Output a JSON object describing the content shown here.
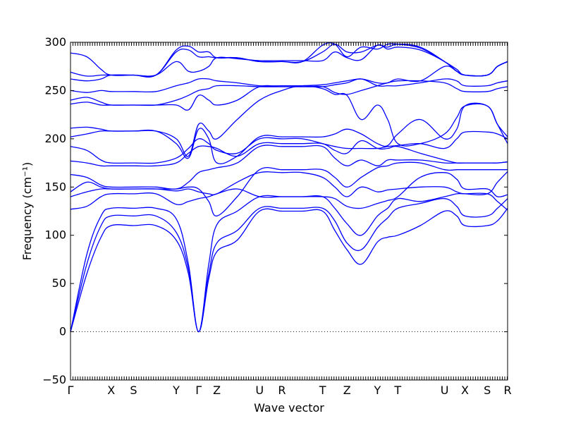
{
  "chart_data": {
    "type": "line",
    "title": "",
    "xlabel": "Wave vector",
    "ylabel": "Frequency (cm⁻¹)",
    "ylim": [
      -50,
      300
    ],
    "xlim": [
      0,
      21.5
    ],
    "yticks": [
      -50,
      0,
      50,
      100,
      150,
      200,
      250,
      300
    ],
    "high_symmetry_points": [
      {
        "label": "Γ",
        "x": 0
      },
      {
        "label": "X",
        "x": 2.0
      },
      {
        "label": "S",
        "x": 3.1
      },
      {
        "label": "Y",
        "x": 5.2
      },
      {
        "label": "Γ",
        "x": 6.3
      },
      {
        "label": "Z",
        "x": 7.2
      },
      {
        "label": "U",
        "x": 9.3
      },
      {
        "label": "R",
        "x": 10.4
      },
      {
        "label": "T",
        "x": 12.4
      },
      {
        "label": "Z",
        "x": 13.6
      },
      {
        "label": "Y",
        "x": 15.1
      },
      {
        "label": "T",
        "x": 16.1
      },
      {
        "label": "U",
        "x": 18.4
      },
      {
        "label": "X",
        "x": 19.4
      },
      {
        "label": "S",
        "x": 20.5
      },
      {
        "label": "R",
        "x": 21.5
      }
    ],
    "grid": false,
    "zero_line": true,
    "line_color": "#0000ff",
    "series": [
      {
        "x": [
          0,
          0.8,
          1.5,
          2.0,
          3.1,
          4.2,
          5.2,
          5.8,
          6.3,
          6.8,
          7.2,
          8.2,
          9.3,
          10.4,
          11.4,
          12.4,
          13.0,
          13.6,
          14.3,
          15.1,
          15.6,
          16.1,
          17.2,
          18.4,
          19.0,
          19.4,
          20.5,
          21.0,
          21.5
        ],
        "y": [
          0,
          60,
          98,
          110,
          110,
          110,
          95,
          60,
          0,
          55,
          83,
          95,
          125,
          125,
          125,
          125,
          105,
          85,
          70,
          93,
          98,
          100,
          110,
          125,
          120,
          110,
          110,
          115,
          128
        ]
      },
      {
        "x": [
          0,
          0.8,
          1.5,
          2.0,
          3.1,
          4.2,
          5.2,
          5.8,
          6.3,
          6.8,
          7.2,
          8.2,
          9.3,
          10.4,
          11.4,
          12.4,
          13.0,
          13.6,
          14.3,
          15.1,
          15.6,
          16.1,
          17.2,
          18.4,
          19.0,
          19.4,
          20.5,
          21.0,
          21.5
        ],
        "y": [
          0,
          70,
          110,
          120,
          120,
          120,
          103,
          65,
          0,
          60,
          92,
          105,
          128,
          128,
          128,
          128,
          115,
          92,
          85,
          108,
          118,
          128,
          133,
          138,
          130,
          120,
          120,
          128,
          138
        ]
      },
      {
        "x": [
          0,
          0.8,
          1.5,
          2.0,
          3.1,
          4.2,
          5.2,
          5.8,
          6.3,
          6.8,
          7.2,
          8.2,
          9.3,
          10.4,
          11.4,
          12.4,
          13.0,
          13.6,
          14.3,
          15.1,
          15.6,
          16.1,
          17.2,
          18.4,
          19.0,
          19.4,
          20.5,
          21.0,
          21.5
        ],
        "y": [
          0,
          80,
          120,
          128,
          128,
          128,
          117,
          70,
          0,
          70,
          111,
          125,
          140,
          140,
          140,
          140,
          128,
          112,
          100,
          120,
          128,
          138,
          135,
          140,
          143,
          143,
          143,
          135,
          126
        ]
      },
      {
        "x": [
          0,
          0.8,
          1.5,
          2.0,
          3.1,
          4.2,
          5.2,
          5.8,
          6.3,
          6.8,
          7.2,
          8.2,
          9.3,
          10.4,
          11.4,
          12.4,
          13.0,
          13.6,
          14.3,
          15.1,
          15.6,
          16.1,
          17.2,
          18.4,
          19.0,
          19.4,
          20.5,
          21.0,
          21.5
        ],
        "y": [
          127,
          130,
          140,
          143,
          143,
          143,
          132,
          135,
          138,
          140,
          143,
          148,
          140,
          140,
          140,
          140,
          138,
          130,
          128,
          133,
          136,
          140,
          160,
          165,
          158,
          148,
          148,
          140,
          142
        ]
      },
      {
        "x": [
          0,
          0.8,
          1.5,
          2.0,
          3.1,
          4.2,
          5.2,
          5.8,
          6.3,
          6.8,
          7.2,
          8.2,
          9.3,
          10.4,
          11.4,
          12.4,
          13.0,
          13.6,
          14.3,
          15.1,
          15.6,
          16.1,
          17.2,
          18.4,
          19.0,
          19.4,
          20.5,
          21.0,
          21.5
        ],
        "y": [
          140,
          145,
          148,
          148,
          148,
          148,
          146,
          148,
          145,
          143,
          143,
          155,
          165,
          165,
          165,
          160,
          150,
          140,
          150,
          145,
          147,
          148,
          150,
          150,
          145,
          143,
          143,
          155,
          166
        ]
      },
      {
        "x": [
          0,
          0.8,
          1.5,
          2.0,
          3.1,
          4.2,
          5.2,
          5.8,
          6.3,
          6.8,
          7.2,
          8.2,
          9.3,
          10.4,
          11.4,
          12.4,
          13.0,
          13.6,
          14.3,
          15.1,
          15.6,
          16.1,
          17.2,
          18.4,
          19.0,
          19.4,
          20.5,
          21.0,
          21.5
        ],
        "y": [
          145,
          155,
          150,
          148,
          148,
          148,
          148,
          150,
          148,
          135,
          120,
          140,
          168,
          168,
          168,
          168,
          160,
          150,
          160,
          170,
          172,
          175,
          175,
          168,
          168,
          168,
          168,
          168,
          168
        ]
      },
      {
        "x": [
          0,
          0.8,
          1.5,
          2.0,
          3.1,
          4.2,
          5.2,
          5.8,
          6.3,
          6.8,
          7.2,
          8.2,
          9.3,
          10.4,
          11.4,
          12.4,
          13.0,
          13.6,
          14.3,
          15.1,
          15.6,
          16.1,
          17.2,
          18.4,
          19.0,
          19.4,
          20.5,
          21.0,
          21.5
        ],
        "y": [
          163,
          160,
          152,
          150,
          150,
          150,
          148,
          155,
          165,
          168,
          170,
          175,
          192,
          192,
          192,
          192,
          180,
          172,
          178,
          172,
          178,
          178,
          178,
          175,
          175,
          175,
          175,
          175,
          176
        ]
      },
      {
        "x": [
          0,
          0.8,
          1.5,
          2.0,
          3.1,
          4.2,
          5.2,
          5.8,
          6.3,
          6.8,
          7.2,
          8.2,
          9.3,
          10.4,
          11.4,
          12.4,
          13.0,
          13.6,
          14.3,
          15.1,
          15.6,
          16.1,
          17.2,
          18.4,
          19.0,
          19.4,
          20.5,
          21.0,
          21.5
        ],
        "y": [
          177,
          175,
          172,
          172,
          172,
          172,
          175,
          185,
          192,
          192,
          190,
          182,
          195,
          195,
          195,
          195,
          188,
          185,
          198,
          190,
          190,
          192,
          185,
          178,
          175,
          175,
          175,
          175,
          176
        ]
      },
      {
        "x": [
          0,
          0.8,
          1.5,
          2.0,
          3.1,
          4.2,
          5.2,
          5.8,
          6.3,
          6.8,
          7.2,
          8.2,
          9.3,
          10.4,
          11.4,
          12.4,
          13.0,
          13.6,
          14.3,
          15.1,
          15.6,
          16.1,
          17.2,
          18.4,
          19.0,
          19.4,
          20.5,
          21.0,
          21.5
        ],
        "y": [
          192,
          188,
          178,
          175,
          175,
          175,
          180,
          190,
          200,
          195,
          188,
          185,
          200,
          200,
          200,
          195,
          192,
          190,
          190,
          190,
          192,
          193,
          195,
          190,
          200,
          207,
          207,
          205,
          200
        ]
      },
      {
        "x": [
          0,
          0.8,
          1.5,
          2.0,
          3.1,
          4.2,
          5.2,
          5.8,
          6.3,
          6.8,
          7.2,
          8.2,
          9.3,
          10.4,
          11.4,
          12.4,
          13.0,
          13.6,
          14.3,
          15.1,
          15.6,
          16.1,
          17.2,
          18.4,
          19.0,
          19.4,
          20.5,
          21.0,
          21.5
        ],
        "y": [
          202,
          205,
          208,
          208,
          208,
          208,
          195,
          180,
          210,
          200,
          175,
          182,
          202,
          202,
          202,
          202,
          205,
          210,
          205,
          195,
          193,
          205,
          220,
          200,
          210,
          234,
          234,
          215,
          195
        ]
      },
      {
        "x": [
          0,
          0.8,
          1.5,
          2.0,
          3.1,
          4.2,
          5.2,
          5.8,
          6.3,
          6.8,
          7.2,
          8.2,
          9.3,
          10.4,
          11.4,
          12.4,
          13.0,
          13.6,
          14.3,
          15.1,
          15.6,
          16.1,
          17.2,
          18.4,
          19.0,
          19.4,
          20.5,
          21.0,
          21.5
        ],
        "y": [
          211,
          212,
          210,
          208,
          208,
          208,
          200,
          182,
          215,
          208,
          200,
          220,
          240,
          250,
          255,
          252,
          246,
          245,
          220,
          235,
          220,
          195,
          195,
          205,
          222,
          234,
          234,
          215,
          202
        ]
      },
      {
        "x": [
          0,
          0.8,
          1.5,
          2.0,
          3.1,
          4.2,
          5.2,
          5.8,
          6.3,
          6.8,
          7.2,
          8.2,
          9.3,
          10.4,
          11.4,
          12.4,
          13.0,
          13.6,
          14.3,
          15.1,
          15.6,
          16.1,
          17.2,
          18.4,
          19.0,
          19.4,
          20.5,
          21.0,
          21.5
        ],
        "y": [
          236,
          238,
          235,
          235,
          235,
          235,
          235,
          230,
          245,
          240,
          235,
          240,
          254,
          254,
          254,
          254,
          248,
          246,
          250,
          255,
          258,
          260,
          260,
          258,
          252,
          249,
          249,
          252,
          254
        ]
      },
      {
        "x": [
          0,
          0.8,
          1.5,
          2.0,
          3.1,
          4.2,
          5.2,
          5.8,
          6.3,
          6.8,
          7.2,
          8.2,
          9.3,
          10.4,
          11.4,
          12.4,
          13.0,
          13.6,
          14.3,
          15.1,
          15.6,
          16.1,
          17.2,
          18.4,
          19.0,
          19.4,
          20.5,
          21.0,
          21.5
        ],
        "y": [
          240,
          243,
          238,
          235,
          235,
          235,
          240,
          245,
          250,
          252,
          255,
          255,
          254,
          254,
          254,
          254,
          256,
          258,
          262,
          255,
          255,
          255,
          258,
          262,
          260,
          255,
          255,
          258,
          260
        ]
      },
      {
        "x": [
          0,
          0.8,
          1.5,
          2.0,
          3.1,
          4.2,
          5.2,
          5.8,
          6.3,
          6.8,
          7.2,
          8.2,
          9.3,
          10.4,
          11.4,
          12.4,
          13.0,
          13.6,
          14.3,
          15.1,
          15.6,
          16.1,
          17.2,
          18.4,
          19.0,
          19.4,
          20.5,
          21.0,
          21.5
        ],
        "y": [
          250,
          248,
          250,
          249,
          249,
          249,
          255,
          258,
          262,
          262,
          260,
          258,
          255,
          255,
          255,
          256,
          258,
          260,
          262,
          258,
          258,
          262,
          260,
          275,
          270,
          266,
          266,
          275,
          280
        ]
      },
      {
        "x": [
          0,
          0.8,
          1.5,
          2.0,
          3.1,
          4.2,
          5.2,
          5.8,
          6.3,
          6.8,
          7.2,
          8.2,
          9.3,
          10.4,
          11.4,
          12.4,
          13.0,
          13.6,
          14.3,
          15.1,
          15.6,
          16.1,
          17.2,
          18.4,
          19.0,
          19.4,
          20.5,
          21.0,
          21.5
        ],
        "y": [
          262,
          260,
          262,
          266,
          266,
          266,
          280,
          270,
          270,
          275,
          284,
          283,
          281,
          281,
          281,
          281,
          290,
          284,
          282,
          297,
          293,
          295,
          292,
          280,
          270,
          266,
          266,
          275,
          280
        ]
      },
      {
        "x": [
          0,
          0.8,
          1.5,
          2.0,
          3.1,
          4.2,
          5.2,
          5.8,
          6.3,
          6.8,
          7.2,
          8.2,
          9.3,
          10.4,
          11.4,
          12.4,
          13.0,
          13.6,
          14.3,
          15.1,
          15.6,
          16.1,
          17.2,
          18.4,
          19.0,
          19.4,
          20.5,
          21.0,
          21.5
        ],
        "y": [
          269,
          265,
          266,
          266,
          266,
          266,
          290,
          292,
          285,
          285,
          284,
          284,
          280,
          280,
          280,
          290,
          298,
          290,
          290,
          297,
          295,
          298,
          295,
          280,
          270,
          266,
          266,
          275,
          280
        ]
      },
      {
        "x": [
          0,
          0.8,
          1.5,
          2.0,
          3.1,
          4.2,
          5.2,
          5.8,
          6.3,
          6.8,
          7.2,
          8.2,
          9.3,
          10.4,
          11.4,
          12.4,
          13.0,
          13.6,
          14.3,
          15.1,
          15.6,
          16.1,
          17.2,
          18.4,
          19.0,
          19.4,
          20.5,
          21.0,
          21.5
        ],
        "y": [
          289,
          285,
          272,
          266,
          266,
          266,
          292,
          296,
          290,
          290,
          284,
          284,
          280,
          280,
          280,
          297,
          298,
          285,
          295,
          293,
          298,
          298,
          294,
          280,
          272,
          266,
          266,
          275,
          280
        ]
      }
    ]
  }
}
